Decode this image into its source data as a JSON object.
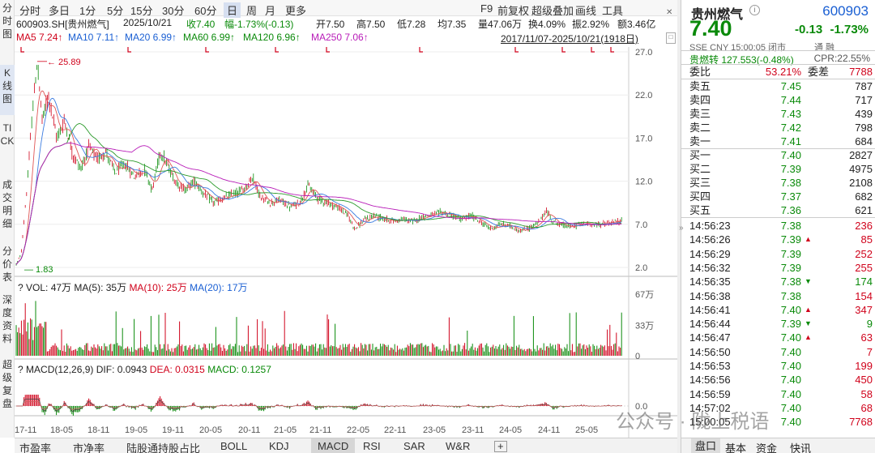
{
  "toolbar": {
    "tabs": [
      "分时",
      "多日",
      "1分",
      "5分",
      "15分",
      "30分",
      "60分",
      "日",
      "周",
      "月",
      "更多"
    ],
    "active_tab": "日",
    "right": [
      "F9",
      "前复权",
      "超级叠加",
      "画线",
      "工具"
    ]
  },
  "left_tabs": [
    "分时图",
    "K线图",
    "TICK",
    "成交明细",
    "分价表",
    "深度资料",
    "超级复盘"
  ],
  "active_left_tab": "K线图",
  "quote_line": {
    "code": "600903.SH[贵州燃气]",
    "date": "2025/10/21",
    "close": "收7.40",
    "change": "幅-1.73%(-0.13)",
    "open": "开7.50",
    "high": "高7.50",
    "low": "低7.28",
    "avg": "均7.35",
    "volume": "量47.06万",
    "turnover": "换4.09%",
    "amplitude": "振2.92%",
    "amount": "额3.46亿"
  },
  "ma_line": {
    "ma5": "MA5 7.24↑",
    "ma10": "MA10 7.11↑",
    "ma20": "MA20 6.99↑",
    "ma60": "MA60 6.99↑",
    "ma120": "MA120 6.96↑",
    "ma250": "MA250 7.06↑",
    "range": "2017/11/07-2025/10/21(1918日)"
  },
  "price_chart": {
    "y_ticks": [
      "27.0",
      "22.0",
      "17.0",
      "12.0",
      "7.0",
      "2.0"
    ],
    "high_label": "25.89",
    "low_label": "1.83"
  },
  "vol_panel": {
    "label": "VOL: 47万",
    "ma5": "MA(5): 35万",
    "ma10": "MA(10): 25万",
    "ma20": "MA(20): 17万",
    "y_ticks": [
      "67万",
      "33万",
      "0"
    ]
  },
  "macd_panel": {
    "label": "MACD(12,26,9)",
    "dif": "DIF: 0.0943",
    "dea": "DEA: 0.0315",
    "macd": "MACD: 0.1257",
    "y_ticks": [
      "0.0"
    ]
  },
  "x_ticks": [
    "17-11",
    "18-05",
    "18-11",
    "19-05",
    "19-11",
    "20-05",
    "20-11",
    "21-05",
    "21-11",
    "22-05",
    "22-11",
    "23-05",
    "23-11",
    "24-05",
    "24-11",
    "25-05"
  ],
  "bottom_tabs": [
    "市盈率",
    "市净率",
    "陆股通持股占比",
    "BOLL",
    "KDJ",
    "MACD",
    "RSI",
    "SAR",
    "W&R",
    "+"
  ],
  "active_bottom_tab": "MACD",
  "stock": {
    "name": "贵州燃气",
    "code": "600903",
    "price": "7.40",
    "change": "-0.13",
    "change_pct": "-1.73%",
    "exchange_line": "SSE CNY 15:00:05 闭市",
    "channel": "通 融",
    "convert": "贵燃转 127.553(-0.48%)",
    "cpr": "CPR:22.55%",
    "weibi_label": "委比",
    "weibi": "53.21%",
    "weicha_label": "委差",
    "weicha": "7788"
  },
  "asks": [
    {
      "label": "卖五",
      "price": "7.45",
      "vol": "787"
    },
    {
      "label": "卖四",
      "price": "7.44",
      "vol": "717"
    },
    {
      "label": "卖三",
      "price": "7.43",
      "vol": "439"
    },
    {
      "label": "卖二",
      "price": "7.42",
      "vol": "798"
    },
    {
      "label": "卖一",
      "price": "7.41",
      "vol": "684"
    }
  ],
  "bids": [
    {
      "label": "买一",
      "price": "7.40",
      "vol": "2827"
    },
    {
      "label": "买二",
      "price": "7.39",
      "vol": "4975"
    },
    {
      "label": "买三",
      "price": "7.38",
      "vol": "2108"
    },
    {
      "label": "买四",
      "price": "7.37",
      "vol": "682"
    },
    {
      "label": "买五",
      "price": "7.36",
      "vol": "621"
    }
  ],
  "ticks": [
    {
      "time": "14:56:23",
      "price": "7.38",
      "vol": "236",
      "dir": ""
    },
    {
      "time": "14:56:26",
      "price": "7.39",
      "vol": "85",
      "dir": "up"
    },
    {
      "time": "14:56:29",
      "price": "7.39",
      "vol": "252",
      "dir": ""
    },
    {
      "time": "14:56:32",
      "price": "7.39",
      "vol": "255",
      "dir": ""
    },
    {
      "time": "14:56:35",
      "price": "7.38",
      "vol": "174",
      "dir": "down"
    },
    {
      "time": "14:56:38",
      "price": "7.38",
      "vol": "154",
      "dir": ""
    },
    {
      "time": "14:56:41",
      "price": "7.40",
      "vol": "347",
      "dir": "up"
    },
    {
      "time": "14:56:44",
      "price": "7.39",
      "vol": "9",
      "dir": "down"
    },
    {
      "time": "14:56:47",
      "price": "7.40",
      "vol": "63",
      "dir": "up"
    },
    {
      "time": "14:56:50",
      "price": "7.40",
      "vol": "7",
      "dir": ""
    },
    {
      "time": "14:56:53",
      "price": "7.40",
      "vol": "199",
      "dir": ""
    },
    {
      "time": "14:56:56",
      "price": "7.40",
      "vol": "450",
      "dir": ""
    },
    {
      "time": "14:56:59",
      "price": "7.40",
      "vol": "58",
      "dir": ""
    },
    {
      "time": "14:57:02",
      "price": "7.40",
      "vol": "68",
      "dir": ""
    },
    {
      "time": "15:00:05",
      "price": "7.40",
      "vol": "7768",
      "dir": ""
    }
  ],
  "right_tabs": [
    "盘口",
    "基本",
    "资金",
    "快讯"
  ],
  "active_right_tab": "盘口",
  "watermark": "公众号 · 陇上税语",
  "colors": {
    "up": "#d0021b",
    "down": "#0a8a0a",
    "accent": "#1a5fd3"
  }
}
